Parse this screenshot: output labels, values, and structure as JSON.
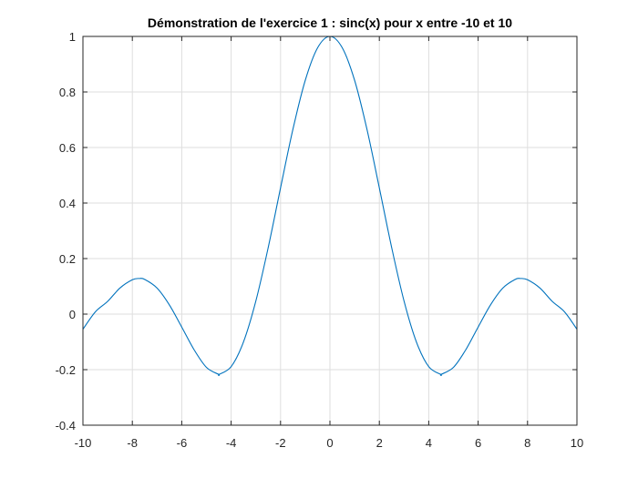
{
  "chart_data": {
    "type": "line",
    "title": "Démonstration de l'exercice 1 : sinc(x) pour x entre -10 et 10",
    "xlabel": "",
    "ylabel": "",
    "xlim": [
      -10,
      10
    ],
    "ylim": [
      -0.4,
      1
    ],
    "x_ticks": [
      -10,
      -8,
      -6,
      -4,
      -2,
      0,
      2,
      4,
      6,
      8,
      10
    ],
    "x_tick_labels": [
      "-10",
      "-8",
      "-6",
      "-4",
      "-2",
      "0",
      "2",
      "4",
      "6",
      "8",
      "10"
    ],
    "y_ticks": [
      -0.4,
      -0.2,
      0,
      0.2,
      0.4,
      0.6,
      0.8,
      1
    ],
    "y_tick_labels": [
      "-0.4",
      "-0.2",
      "0",
      "0.2",
      "0.4",
      "0.6",
      "0.8",
      "1"
    ],
    "grid": true,
    "series": [
      {
        "color": "#0072bd",
        "x": [
          -10,
          -9.5,
          -9,
          -8.5,
          -8,
          -7.725,
          -7.5,
          -7,
          -6.5,
          -6,
          -5.5,
          -5,
          -4.5,
          -4.493,
          -4,
          -3.5,
          -3,
          -2.5,
          -2,
          -1.5,
          -1,
          -0.5,
          0,
          0.5,
          1,
          1.5,
          2,
          2.5,
          3,
          3.5,
          4,
          4.493,
          4.5,
          5,
          5.5,
          6,
          6.5,
          7,
          7.5,
          7.725,
          8,
          8.5,
          9,
          9.5,
          10
        ],
        "y": [
          -0.0544,
          0.0079,
          0.0458,
          0.094,
          0.1237,
          0.1283,
          0.125,
          0.0939,
          0.0331,
          -0.0466,
          -0.1283,
          -0.1918,
          -0.2172,
          -0.2172,
          -0.1892,
          -0.1002,
          0.047,
          0.2394,
          0.4546,
          0.665,
          0.8415,
          0.9589,
          1.0,
          0.9589,
          0.8415,
          0.665,
          0.4546,
          0.2394,
          0.047,
          -0.1002,
          -0.1892,
          -0.2172,
          -0.2172,
          -0.1918,
          -0.1283,
          -0.0466,
          0.0331,
          0.0939,
          0.125,
          0.1283,
          0.1237,
          0.094,
          0.0458,
          0.0079,
          -0.0544
        ]
      }
    ]
  }
}
